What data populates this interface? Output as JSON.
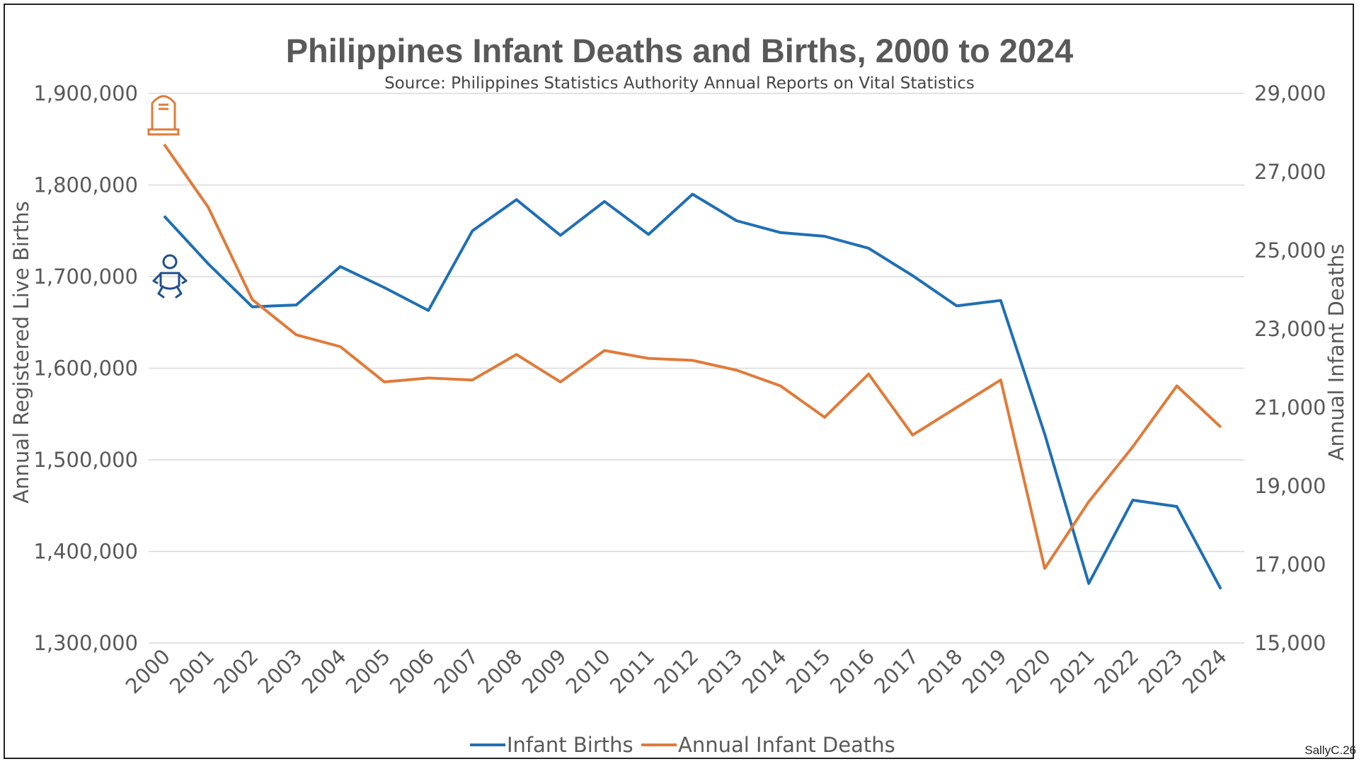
{
  "chart_data": {
    "type": "line",
    "title": "Philippines Infant Deaths and Births, 2000 to 2024",
    "subtitle": "Source: Philippines Statistics Authority Annual Reports on Vital Statistics",
    "categories": [
      "2000",
      "2001",
      "2002",
      "2003",
      "2004",
      "2005",
      "2006",
      "2007",
      "2008",
      "2009",
      "2010",
      "2011",
      "2012",
      "2013",
      "2014",
      "2015",
      "2016",
      "2017",
      "2018",
      "2019",
      "2020",
      "2021",
      "2022",
      "2023",
      "2024"
    ],
    "series": [
      {
        "name": "Infant Births",
        "axis": "left",
        "color": "#1f6fb4",
        "values": [
          1766000,
          1714000,
          1667000,
          1669000,
          1711000,
          1688000,
          1663000,
          1750000,
          1784000,
          1745000,
          1782000,
          1746000,
          1790000,
          1761000,
          1748000,
          1744000,
          1731000,
          1701000,
          1668000,
          1674000,
          1528000,
          1365000,
          1456000,
          1449000,
          1359000
        ]
      },
      {
        "name": "Annual Infant Deaths",
        "axis": "right",
        "color": "#e07b39",
        "values": [
          27700,
          26100,
          23750,
          22850,
          22550,
          21650,
          21750,
          21700,
          22350,
          21650,
          22450,
          22250,
          22200,
          21950,
          21550,
          20750,
          21850,
          20300,
          21000,
          21700,
          16900,
          18600,
          20000,
          21550,
          20500
        ]
      }
    ],
    "ylabel": "Annual Registered Live Births",
    "y2label": "Annual Infant Deaths",
    "ylim": [
      1300000,
      1900000
    ],
    "y2lim": [
      15000,
      29000
    ],
    "yticks": [
      "1,300,000",
      "1,400,000",
      "1,500,000",
      "1,600,000",
      "1,700,000",
      "1,800,000",
      "1,900,000"
    ],
    "y2ticks": [
      "15,000",
      "17,000",
      "19,000",
      "21,000",
      "23,000",
      "25,000",
      "27,000",
      "29,000"
    ],
    "grid": true,
    "legend": "bottom-center"
  },
  "icons": {
    "deaths_icon": "tombstone-icon",
    "births_icon": "baby-icon"
  },
  "credit": "SallyC.26"
}
